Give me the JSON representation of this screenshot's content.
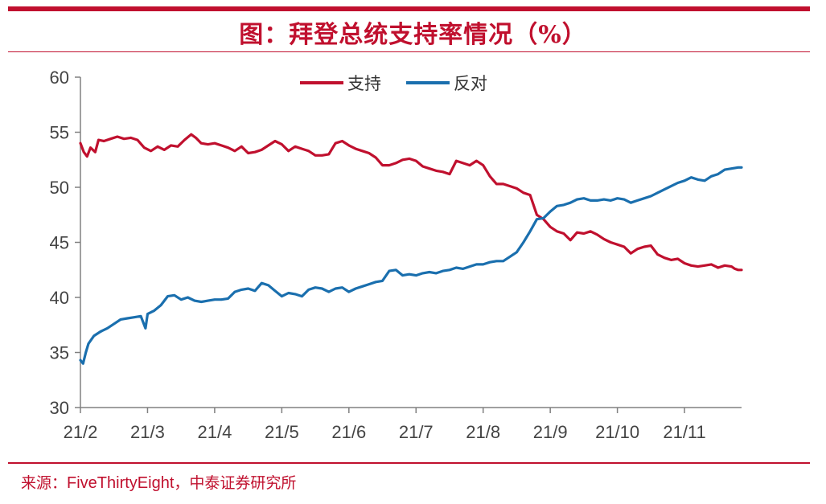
{
  "header": {
    "title": "图：拜登总统支持率情况（%）"
  },
  "footer": {
    "source_prefix": "来源：",
    "source_name": "FiveThirtyEight",
    "source_suffix": "，中泰证券研究所"
  },
  "colors": {
    "accent": "#c0102e",
    "support": "#c0102e",
    "oppose": "#1a6fae",
    "axis": "#808080"
  },
  "chart_data": {
    "type": "line",
    "title": "",
    "xlabel": "",
    "ylabel": "",
    "ylim": [
      30,
      60
    ],
    "yticks": [
      30,
      35,
      40,
      45,
      50,
      55,
      60
    ],
    "xlim": [
      0,
      9.85
    ],
    "xticks": [
      {
        "label": "21/2",
        "x": 0
      },
      {
        "label": "21/3",
        "x": 1
      },
      {
        "label": "21/4",
        "x": 2
      },
      {
        "label": "21/5",
        "x": 3
      },
      {
        "label": "21/6",
        "x": 4
      },
      {
        "label": "21/7",
        "x": 5
      },
      {
        "label": "21/8",
        "x": 6
      },
      {
        "label": "21/9",
        "x": 7
      },
      {
        "label": "21/10",
        "x": 8
      },
      {
        "label": "21/11",
        "x": 9
      }
    ],
    "grid": false,
    "legend_position": "top-center",
    "series": [
      {
        "name": "支持",
        "color": "#c0102e",
        "points": [
          [
            0.0,
            54.0
          ],
          [
            0.05,
            53.2
          ],
          [
            0.1,
            52.8
          ],
          [
            0.15,
            53.6
          ],
          [
            0.22,
            53.2
          ],
          [
            0.27,
            54.3
          ],
          [
            0.35,
            54.2
          ],
          [
            0.45,
            54.4
          ],
          [
            0.55,
            54.6
          ],
          [
            0.65,
            54.4
          ],
          [
            0.75,
            54.5
          ],
          [
            0.85,
            54.3
          ],
          [
            0.95,
            53.6
          ],
          [
            1.05,
            53.3
          ],
          [
            1.15,
            53.7
          ],
          [
            1.25,
            53.4
          ],
          [
            1.35,
            53.8
          ],
          [
            1.45,
            53.7
          ],
          [
            1.55,
            54.3
          ],
          [
            1.65,
            54.8
          ],
          [
            1.72,
            54.5
          ],
          [
            1.8,
            54.0
          ],
          [
            1.9,
            53.9
          ],
          [
            2.0,
            54.0
          ],
          [
            2.1,
            53.8
          ],
          [
            2.2,
            53.6
          ],
          [
            2.3,
            53.3
          ],
          [
            2.4,
            53.7
          ],
          [
            2.5,
            53.1
          ],
          [
            2.6,
            53.2
          ],
          [
            2.7,
            53.4
          ],
          [
            2.8,
            53.8
          ],
          [
            2.9,
            54.2
          ],
          [
            3.0,
            53.9
          ],
          [
            3.1,
            53.3
          ],
          [
            3.2,
            53.7
          ],
          [
            3.3,
            53.5
          ],
          [
            3.4,
            53.3
          ],
          [
            3.5,
            52.9
          ],
          [
            3.6,
            52.9
          ],
          [
            3.7,
            53.0
          ],
          [
            3.8,
            54.0
          ],
          [
            3.9,
            54.2
          ],
          [
            4.0,
            53.8
          ],
          [
            4.1,
            53.5
          ],
          [
            4.2,
            53.3
          ],
          [
            4.3,
            53.1
          ],
          [
            4.4,
            52.7
          ],
          [
            4.5,
            52.0
          ],
          [
            4.6,
            52.0
          ],
          [
            4.7,
            52.2
          ],
          [
            4.8,
            52.5
          ],
          [
            4.9,
            52.6
          ],
          [
            5.0,
            52.4
          ],
          [
            5.1,
            51.9
          ],
          [
            5.2,
            51.7
          ],
          [
            5.3,
            51.5
          ],
          [
            5.4,
            51.4
          ],
          [
            5.5,
            51.2
          ],
          [
            5.6,
            52.4
          ],
          [
            5.7,
            52.2
          ],
          [
            5.8,
            52.0
          ],
          [
            5.9,
            52.4
          ],
          [
            6.0,
            52.0
          ],
          [
            6.1,
            51.0
          ],
          [
            6.2,
            50.3
          ],
          [
            6.3,
            50.3
          ],
          [
            6.4,
            50.1
          ],
          [
            6.5,
            49.9
          ],
          [
            6.6,
            49.5
          ],
          [
            6.7,
            49.3
          ],
          [
            6.8,
            47.5
          ],
          [
            6.9,
            47.1
          ],
          [
            7.0,
            46.4
          ],
          [
            7.1,
            46.0
          ],
          [
            7.2,
            45.8
          ],
          [
            7.3,
            45.2
          ],
          [
            7.4,
            45.9
          ],
          [
            7.5,
            45.8
          ],
          [
            7.6,
            46.0
          ],
          [
            7.7,
            45.7
          ],
          [
            7.8,
            45.3
          ],
          [
            7.9,
            45.0
          ],
          [
            8.0,
            44.8
          ],
          [
            8.1,
            44.6
          ],
          [
            8.2,
            44.0
          ],
          [
            8.3,
            44.4
          ],
          [
            8.4,
            44.6
          ],
          [
            8.5,
            44.7
          ],
          [
            8.6,
            43.9
          ],
          [
            8.7,
            43.6
          ],
          [
            8.8,
            43.4
          ],
          [
            8.9,
            43.5
          ],
          [
            9.0,
            43.1
          ],
          [
            9.1,
            42.9
          ],
          [
            9.2,
            42.8
          ],
          [
            9.3,
            42.9
          ],
          [
            9.4,
            43.0
          ],
          [
            9.5,
            42.7
          ],
          [
            9.6,
            42.9
          ],
          [
            9.7,
            42.8
          ],
          [
            9.75,
            42.6
          ],
          [
            9.8,
            42.5
          ],
          [
            9.85,
            42.5
          ]
        ]
      },
      {
        "name": "反对",
        "color": "#1a6fae",
        "points": [
          [
            0.0,
            34.3
          ],
          [
            0.04,
            34.0
          ],
          [
            0.08,
            35.0
          ],
          [
            0.12,
            35.8
          ],
          [
            0.2,
            36.5
          ],
          [
            0.3,
            36.9
          ],
          [
            0.4,
            37.2
          ],
          [
            0.5,
            37.6
          ],
          [
            0.6,
            38.0
          ],
          [
            0.7,
            38.1
          ],
          [
            0.8,
            38.2
          ],
          [
            0.9,
            38.3
          ],
          [
            0.97,
            37.2
          ],
          [
            1.0,
            38.5
          ],
          [
            1.1,
            38.8
          ],
          [
            1.2,
            39.3
          ],
          [
            1.3,
            40.1
          ],
          [
            1.4,
            40.2
          ],
          [
            1.5,
            39.8
          ],
          [
            1.6,
            40.0
          ],
          [
            1.7,
            39.7
          ],
          [
            1.8,
            39.6
          ],
          [
            1.9,
            39.7
          ],
          [
            2.0,
            39.8
          ],
          [
            2.1,
            39.8
          ],
          [
            2.2,
            39.9
          ],
          [
            2.3,
            40.5
          ],
          [
            2.4,
            40.7
          ],
          [
            2.5,
            40.8
          ],
          [
            2.6,
            40.6
          ],
          [
            2.7,
            41.3
          ],
          [
            2.8,
            41.1
          ],
          [
            2.9,
            40.6
          ],
          [
            3.0,
            40.1
          ],
          [
            3.1,
            40.4
          ],
          [
            3.2,
            40.3
          ],
          [
            3.3,
            40.1
          ],
          [
            3.4,
            40.7
          ],
          [
            3.5,
            40.9
          ],
          [
            3.6,
            40.8
          ],
          [
            3.7,
            40.5
          ],
          [
            3.8,
            40.8
          ],
          [
            3.9,
            40.9
          ],
          [
            4.0,
            40.5
          ],
          [
            4.1,
            40.8
          ],
          [
            4.2,
            41.0
          ],
          [
            4.3,
            41.2
          ],
          [
            4.4,
            41.4
          ],
          [
            4.5,
            41.5
          ],
          [
            4.6,
            42.4
          ],
          [
            4.7,
            42.5
          ],
          [
            4.8,
            42.0
          ],
          [
            4.9,
            42.1
          ],
          [
            5.0,
            42.0
          ],
          [
            5.1,
            42.2
          ],
          [
            5.2,
            42.3
          ],
          [
            5.3,
            42.2
          ],
          [
            5.4,
            42.4
          ],
          [
            5.5,
            42.5
          ],
          [
            5.6,
            42.7
          ],
          [
            5.7,
            42.6
          ],
          [
            5.8,
            42.8
          ],
          [
            5.9,
            43.0
          ],
          [
            6.0,
            43.0
          ],
          [
            6.1,
            43.2
          ],
          [
            6.2,
            43.3
          ],
          [
            6.3,
            43.3
          ],
          [
            6.4,
            43.7
          ],
          [
            6.5,
            44.1
          ],
          [
            6.6,
            45.0
          ],
          [
            6.7,
            46.0
          ],
          [
            6.8,
            47.1
          ],
          [
            6.9,
            47.2
          ],
          [
            7.0,
            47.8
          ],
          [
            7.1,
            48.3
          ],
          [
            7.2,
            48.4
          ],
          [
            7.3,
            48.6
          ],
          [
            7.4,
            48.9
          ],
          [
            7.5,
            49.0
          ],
          [
            7.6,
            48.8
          ],
          [
            7.7,
            48.8
          ],
          [
            7.8,
            48.9
          ],
          [
            7.9,
            48.8
          ],
          [
            8.0,
            49.0
          ],
          [
            8.1,
            48.9
          ],
          [
            8.2,
            48.6
          ],
          [
            8.3,
            48.8
          ],
          [
            8.4,
            49.0
          ],
          [
            8.5,
            49.2
          ],
          [
            8.6,
            49.5
          ],
          [
            8.7,
            49.8
          ],
          [
            8.8,
            50.1
          ],
          [
            8.9,
            50.4
          ],
          [
            9.0,
            50.6
          ],
          [
            9.1,
            50.9
          ],
          [
            9.2,
            50.7
          ],
          [
            9.3,
            50.6
          ],
          [
            9.4,
            51.0
          ],
          [
            9.5,
            51.2
          ],
          [
            9.6,
            51.6
          ],
          [
            9.7,
            51.7
          ],
          [
            9.8,
            51.8
          ],
          [
            9.85,
            51.8
          ]
        ]
      }
    ]
  }
}
